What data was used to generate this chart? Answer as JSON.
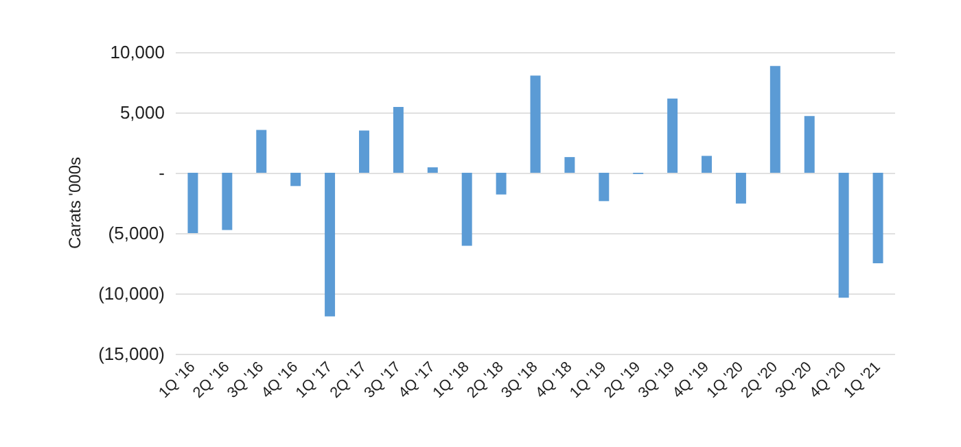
{
  "chart_data": {
    "type": "bar",
    "ylabel": "Carats '000s",
    "categories": [
      "1Q '16",
      "2Q '16",
      "3Q '16",
      "4Q '16",
      "1Q '17",
      "2Q '17",
      "3Q '17",
      "4Q '17",
      "1Q '18",
      "2Q '18",
      "3Q '18",
      "4Q '18",
      "1Q '19",
      "2Q '19",
      "3Q '19",
      "4Q '19",
      "1Q '20",
      "2Q '20",
      "3Q '20",
      "4Q '20",
      "1Q '21"
    ],
    "values": [
      -5000,
      -4750,
      3550,
      -1100,
      -11900,
      3500,
      5450,
      450,
      -6050,
      -1800,
      8050,
      1300,
      -2350,
      -100,
      6150,
      1400,
      -2550,
      8850,
      4700,
      -10350,
      -7500
    ],
    "color": "#5b9bd5",
    "ylim": [
      -15000,
      10000
    ],
    "yticks": [
      {
        "value": -15000,
        "label": "(15,000)"
      },
      {
        "value": -10000,
        "label": "(10,000)"
      },
      {
        "value": -5000,
        "label": "(5,000)"
      },
      {
        "value": 0,
        "label": "-"
      },
      {
        "value": 5000,
        "label": "5,000"
      },
      {
        "value": 10000,
        "label": "10,000"
      }
    ],
    "grid": "y"
  }
}
